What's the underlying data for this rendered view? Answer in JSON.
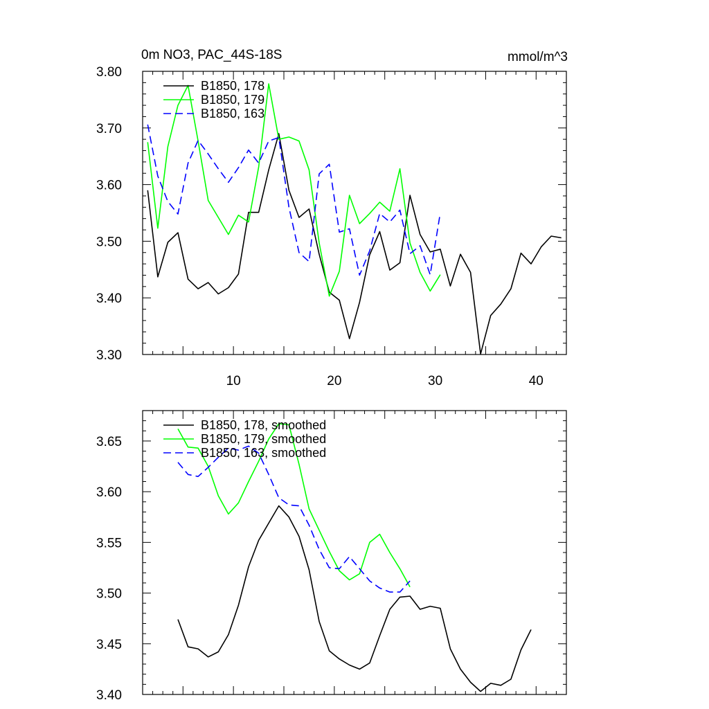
{
  "chart_data": [
    {
      "type": "line",
      "title": "0m NO3, PAC_44S-18S",
      "units": "mmol/m^3",
      "xlim": [
        1,
        43
      ],
      "ylim": [
        3.3,
        3.8
      ],
      "x_ticks": [
        10,
        20,
        30,
        40
      ],
      "y_ticks": [
        3.3,
        3.4,
        3.5,
        3.6,
        3.7,
        3.8
      ],
      "y_tick_labels": [
        "3.30",
        "3.40",
        "3.50",
        "3.60",
        "3.70",
        "3.80"
      ],
      "x_tick_labels": [
        "10",
        "20",
        "30",
        "40"
      ],
      "legend": "top-left",
      "grid": false,
      "series": [
        {
          "name": "B1850, 178",
          "color": "#000000",
          "dash": "solid",
          "x": [
            1.5,
            2.5,
            3.5,
            4.5,
            5.5,
            6.5,
            7.5,
            8.5,
            9.5,
            10.5,
            11.5,
            12.5,
            13.5,
            14.5,
            15.5,
            16.5,
            17.5,
            18.5,
            19.5,
            20.5,
            21.5,
            22.5,
            23.5,
            24.5,
            25.5,
            26.5,
            27.5,
            28.5,
            29.5,
            30.5,
            31.5,
            32.5,
            33.5,
            34.5,
            35.5,
            36.5,
            37.5,
            38.5,
            39.5,
            40.5,
            41.5,
            42.5
          ],
          "values": [
            3.59,
            3.437,
            3.498,
            3.515,
            3.433,
            3.416,
            3.427,
            3.407,
            3.418,
            3.442,
            3.551,
            3.551,
            3.626,
            3.69,
            3.59,
            3.542,
            3.557,
            3.477,
            3.41,
            3.396,
            3.328,
            3.392,
            3.476,
            3.517,
            3.449,
            3.462,
            3.581,
            3.512,
            3.481,
            3.486,
            3.421,
            3.477,
            3.445,
            3.301,
            3.369,
            3.389,
            3.416,
            3.479,
            3.46,
            3.49,
            3.509,
            3.506
          ]
        },
        {
          "name": "B1850, 179",
          "color": "#00ff00",
          "dash": "solid",
          "x": [
            1.5,
            2.5,
            3.5,
            4.5,
            5.5,
            6.5,
            7.5,
            8.5,
            9.5,
            10.5,
            11.5,
            12.5,
            13.5,
            14.5,
            15.5,
            16.5,
            17.5,
            18.5,
            19.5,
            20.5,
            21.5,
            22.5,
            23.5,
            24.5,
            25.5,
            26.5,
            27.5,
            28.5,
            29.5,
            30.5
          ],
          "values": [
            3.675,
            3.523,
            3.667,
            3.74,
            3.775,
            3.677,
            3.572,
            3.542,
            3.512,
            3.546,
            3.534,
            3.631,
            3.778,
            3.68,
            3.684,
            3.677,
            3.626,
            3.497,
            3.403,
            3.447,
            3.581,
            3.531,
            3.549,
            3.569,
            3.553,
            3.628,
            3.497,
            3.445,
            3.412,
            3.441
          ]
        },
        {
          "name": "B1850, 163",
          "color": "#0000ff",
          "dash": "dashed",
          "x": [
            1.5,
            2.5,
            3.5,
            4.5,
            5.5,
            6.5,
            7.5,
            8.5,
            9.5,
            10.5,
            11.5,
            12.5,
            13.5,
            14.5,
            15.5,
            16.5,
            17.5,
            18.5,
            19.5,
            20.5,
            21.5,
            22.5,
            23.5,
            24.5,
            25.5,
            26.5,
            27.5,
            28.5,
            29.5,
            30.5
          ],
          "values": [
            3.706,
            3.615,
            3.57,
            3.548,
            3.638,
            3.678,
            3.654,
            3.628,
            3.604,
            3.63,
            3.661,
            3.638,
            3.677,
            3.683,
            3.56,
            3.48,
            3.464,
            3.619,
            3.636,
            3.516,
            3.522,
            3.44,
            3.483,
            3.549,
            3.534,
            3.555,
            3.478,
            3.492,
            3.441,
            3.55
          ]
        }
      ]
    },
    {
      "type": "line",
      "title": "",
      "xlim": [
        1,
        43
      ],
      "ylim": [
        3.4,
        3.68
      ],
      "x_ticks": [
        10,
        20,
        30,
        40
      ],
      "y_ticks": [
        3.4,
        3.45,
        3.5,
        3.55,
        3.6,
        3.65
      ],
      "y_tick_labels": [
        "3.40",
        "3.45",
        "3.50",
        "3.55",
        "3.60",
        "3.65"
      ],
      "legend": "top-left",
      "grid": false,
      "series": [
        {
          "name": "B1850, 178, smoothed",
          "color": "#000000",
          "dash": "solid",
          "x": [
            4.5,
            5.5,
            6.5,
            7.5,
            8.5,
            9.5,
            10.5,
            11.5,
            12.5,
            13.5,
            14.5,
            15.5,
            16.5,
            17.5,
            18.5,
            19.5,
            20.5,
            21.5,
            22.5,
            23.5,
            24.5,
            25.5,
            26.5,
            27.5,
            28.5,
            29.5,
            30.5,
            31.5,
            32.5,
            33.5,
            34.5,
            35.5,
            36.5,
            37.5,
            38.5,
            39.5
          ],
          "values": [
            3.474,
            3.447,
            3.445,
            3.437,
            3.442,
            3.459,
            3.488,
            3.526,
            3.552,
            3.569,
            3.586,
            3.575,
            3.556,
            3.523,
            3.472,
            3.443,
            3.435,
            3.429,
            3.425,
            3.431,
            3.458,
            3.484,
            3.496,
            3.497,
            3.484,
            3.487,
            3.485,
            3.445,
            3.425,
            3.412,
            3.403,
            3.411,
            3.409,
            3.415,
            3.444,
            3.464
          ]
        },
        {
          "name": "B1850, 179, smoothed",
          "color": "#00ff00",
          "dash": "solid",
          "x": [
            4.5,
            5.5,
            6.5,
            7.5,
            8.5,
            9.5,
            10.5,
            11.5,
            12.5,
            13.5,
            14.5,
            15.5,
            16.5,
            17.5,
            18.5,
            19.5,
            20.5,
            21.5,
            22.5,
            23.5,
            24.5,
            25.5,
            26.5,
            27.5
          ],
          "values": [
            3.662,
            3.644,
            3.643,
            3.625,
            3.596,
            3.578,
            3.589,
            3.61,
            3.63,
            3.652,
            3.667,
            3.666,
            3.627,
            3.583,
            3.562,
            3.541,
            3.522,
            3.513,
            3.519,
            3.55,
            3.558,
            3.54,
            3.524,
            3.506
          ]
        },
        {
          "name": "B1850, 163, smoothed",
          "color": "#0000ff",
          "dash": "dashed",
          "x": [
            4.5,
            5.5,
            6.5,
            7.5,
            8.5,
            9.5,
            10.5,
            11.5,
            12.5,
            13.5,
            14.5,
            15.5,
            16.5,
            17.5,
            18.5,
            19.5,
            20.5,
            21.5,
            22.5,
            23.5,
            24.5,
            25.5,
            26.5,
            27.5
          ],
          "values": [
            3.629,
            3.617,
            3.615,
            3.624,
            3.634,
            3.643,
            3.641,
            3.645,
            3.638,
            3.617,
            3.594,
            3.587,
            3.586,
            3.567,
            3.543,
            3.525,
            3.524,
            3.536,
            3.524,
            3.512,
            3.505,
            3.501,
            3.501,
            3.512
          ]
        }
      ]
    }
  ]
}
